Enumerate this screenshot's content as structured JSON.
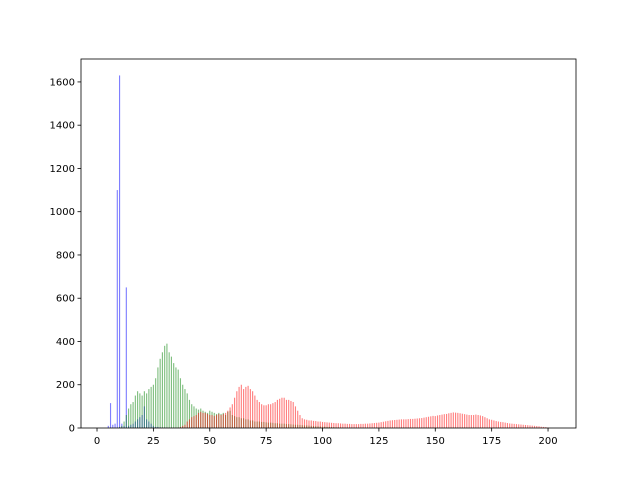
{
  "chart_data": {
    "type": "bar",
    "x": [
      0,
      1,
      2,
      3,
      4,
      5,
      6,
      7,
      8,
      9,
      10,
      11,
      12,
      13,
      14,
      15,
      16,
      17,
      18,
      19,
      20,
      21,
      22,
      23,
      24,
      25,
      26,
      27,
      28,
      29,
      30,
      31,
      32,
      33,
      34,
      35,
      36,
      37,
      38,
      39,
      40,
      41,
      42,
      43,
      44,
      45,
      46,
      47,
      48,
      49,
      50,
      51,
      52,
      53,
      54,
      55,
      56,
      57,
      58,
      59,
      60,
      61,
      62,
      63,
      64,
      65,
      66,
      67,
      68,
      69,
      70,
      71,
      72,
      73,
      74,
      75,
      76,
      77,
      78,
      79,
      80,
      81,
      82,
      83,
      84,
      85,
      86,
      87,
      88,
      89,
      90,
      91,
      92,
      93,
      94,
      95,
      96,
      97,
      98,
      99,
      100,
      101,
      102,
      103,
      104,
      105,
      106,
      107,
      108,
      109,
      110,
      111,
      112,
      113,
      114,
      115,
      116,
      117,
      118,
      119,
      120,
      121,
      122,
      123,
      124,
      125,
      126,
      127,
      128,
      129,
      130,
      131,
      132,
      133,
      134,
      135,
      136,
      137,
      138,
      139,
      140,
      141,
      142,
      143,
      144,
      145,
      146,
      147,
      148,
      149,
      150,
      151,
      152,
      153,
      154,
      155,
      156,
      157,
      158,
      159,
      160,
      161,
      162,
      163,
      164,
      165,
      166,
      167,
      168,
      169,
      170,
      171,
      172,
      173,
      174,
      175,
      176,
      177,
      178,
      179,
      180,
      181,
      182,
      183,
      184,
      185,
      186,
      187,
      188,
      189,
      190,
      191,
      192,
      193,
      194,
      195,
      196,
      197,
      198,
      199,
      200
    ],
    "series": [
      {
        "color": "#0000ff",
        "values": [
          0,
          0,
          0,
          0,
          0,
          10,
          115,
          15,
          20,
          1100,
          1630,
          20,
          10,
          650,
          10,
          15,
          20,
          30,
          40,
          50,
          60,
          100,
          40,
          30,
          20,
          10,
          5,
          5,
          3,
          2,
          2,
          1,
          1,
          0,
          0,
          0,
          0,
          0,
          0,
          0,
          0,
          0,
          0,
          0,
          0,
          0,
          0,
          0,
          0,
          0,
          0,
          0,
          0,
          0,
          0,
          0,
          0,
          0,
          0,
          0,
          0,
          0,
          0,
          0,
          0,
          0,
          0,
          0,
          0,
          0,
          0,
          0,
          0,
          0,
          0,
          0,
          0,
          0,
          0,
          0,
          0,
          0,
          0,
          0,
          0,
          0,
          0,
          0,
          0,
          0,
          0,
          0,
          0,
          0,
          0,
          0,
          0,
          0,
          0,
          0,
          0,
          0,
          0,
          0,
          0,
          0,
          0,
          0,
          0,
          0,
          0,
          0,
          0,
          0,
          0,
          0,
          0,
          0,
          0,
          0,
          0,
          0,
          0,
          0,
          0,
          0,
          0,
          0,
          0,
          0,
          0,
          0,
          0,
          0,
          0,
          0,
          0,
          0,
          0,
          0,
          0,
          0,
          0,
          0,
          0,
          0,
          0,
          0,
          0,
          0,
          0,
          0,
          0,
          0,
          0,
          0,
          0,
          0,
          0,
          0,
          0,
          0,
          0,
          0,
          0,
          0,
          0,
          0,
          0,
          0,
          0,
          0,
          0,
          0,
          0,
          0,
          0,
          0,
          0,
          0,
          0,
          0,
          0,
          0,
          0,
          0,
          0,
          0,
          0,
          0,
          0,
          0,
          0,
          0,
          0,
          0,
          0,
          0,
          0,
          0,
          0
        ]
      },
      {
        "color": "#008000",
        "values": [
          0,
          0,
          0,
          0,
          0,
          0,
          0,
          0,
          0,
          0,
          5,
          10,
          30,
          60,
          90,
          110,
          120,
          150,
          170,
          160,
          150,
          170,
          160,
          180,
          190,
          200,
          230,
          280,
          320,
          350,
          380,
          390,
          350,
          330,
          300,
          280,
          270,
          230,
          200,
          180,
          160,
          130,
          110,
          100,
          90,
          85,
          90,
          80,
          75,
          70,
          80,
          75,
          70,
          65,
          70,
          65,
          70,
          60,
          75,
          80,
          60,
          55,
          50,
          50,
          45,
          45,
          40,
          40,
          35,
          35,
          30,
          30,
          30,
          28,
          28,
          26,
          25,
          25,
          24,
          22,
          22,
          20,
          20,
          20,
          18,
          18,
          17,
          16,
          15,
          15,
          14,
          13,
          12,
          12,
          11,
          10,
          9,
          8,
          8,
          7,
          6,
          6,
          5,
          5,
          4,
          4,
          3,
          3,
          2,
          2,
          1,
          1,
          1,
          0,
          0,
          0,
          0,
          0,
          0,
          0,
          0,
          0,
          0,
          0,
          0,
          0,
          0,
          0,
          0,
          0,
          0,
          0,
          0,
          0,
          0,
          0,
          0,
          0,
          0,
          0,
          0,
          0,
          0,
          0,
          0,
          0,
          0,
          0,
          0,
          0,
          0,
          0,
          0,
          0,
          0,
          0,
          0,
          0,
          0,
          0,
          0,
          0,
          0,
          0,
          0,
          0,
          0,
          0,
          0,
          0,
          0,
          0,
          0,
          0,
          0,
          0,
          0,
          0,
          0,
          0,
          0,
          0,
          0,
          0,
          0,
          0,
          0,
          0,
          0,
          0,
          0,
          0,
          0,
          0,
          0,
          0,
          0,
          0,
          0,
          0,
          0
        ]
      },
      {
        "color": "#ff0000",
        "values": [
          0,
          0,
          0,
          0,
          0,
          0,
          0,
          0,
          0,
          0,
          0,
          0,
          0,
          0,
          0,
          0,
          0,
          0,
          0,
          0,
          0,
          0,
          0,
          0,
          0,
          0,
          0,
          0,
          0,
          0,
          0,
          0,
          0,
          0,
          0,
          0,
          2,
          5,
          10,
          15,
          30,
          40,
          50,
          55,
          60,
          70,
          75,
          70,
          70,
          65,
          60,
          60,
          55,
          60,
          65,
          60,
          65,
          70,
          80,
          95,
          110,
          140,
          170,
          190,
          200,
          180,
          190,
          195,
          180,
          170,
          150,
          130,
          120,
          110,
          105,
          105,
          110,
          110,
          115,
          120,
          130,
          135,
          140,
          140,
          130,
          130,
          125,
          120,
          100,
          80,
          60,
          45,
          40,
          38,
          35,
          35,
          33,
          32,
          30,
          30,
          28,
          27,
          26,
          25,
          24,
          23,
          22,
          22,
          21,
          20,
          20,
          19,
          19,
          18,
          18,
          18,
          18,
          19,
          19,
          20,
          20,
          21,
          22,
          23,
          24,
          25,
          27,
          29,
          31,
          33,
          35,
          36,
          37,
          38,
          39,
          40,
          40,
          40,
          41,
          42,
          42,
          43,
          44,
          45,
          46,
          48,
          50,
          52,
          54,
          56,
          55,
          58,
          60,
          62,
          64,
          65,
          68,
          70,
          72,
          71,
          70,
          68,
          66,
          64,
          62,
          60,
          60,
          60,
          62,
          60,
          58,
          55,
          50,
          45,
          40,
          38,
          35,
          32,
          30,
          28,
          27,
          25,
          23,
          21,
          20,
          19,
          18,
          17,
          16,
          15,
          14,
          13,
          12,
          11,
          10,
          9,
          8,
          6,
          5,
          4,
          2
        ]
      }
    ],
    "alpha": 0.5,
    "xlim": [
      -7.1,
      212.4
    ],
    "ylim": [
      0,
      1706
    ],
    "xticks": [
      0,
      25,
      50,
      75,
      100,
      125,
      150,
      175,
      200
    ],
    "yticks": [
      0,
      200,
      400,
      600,
      800,
      1000,
      1200,
      1400,
      1600
    ]
  }
}
